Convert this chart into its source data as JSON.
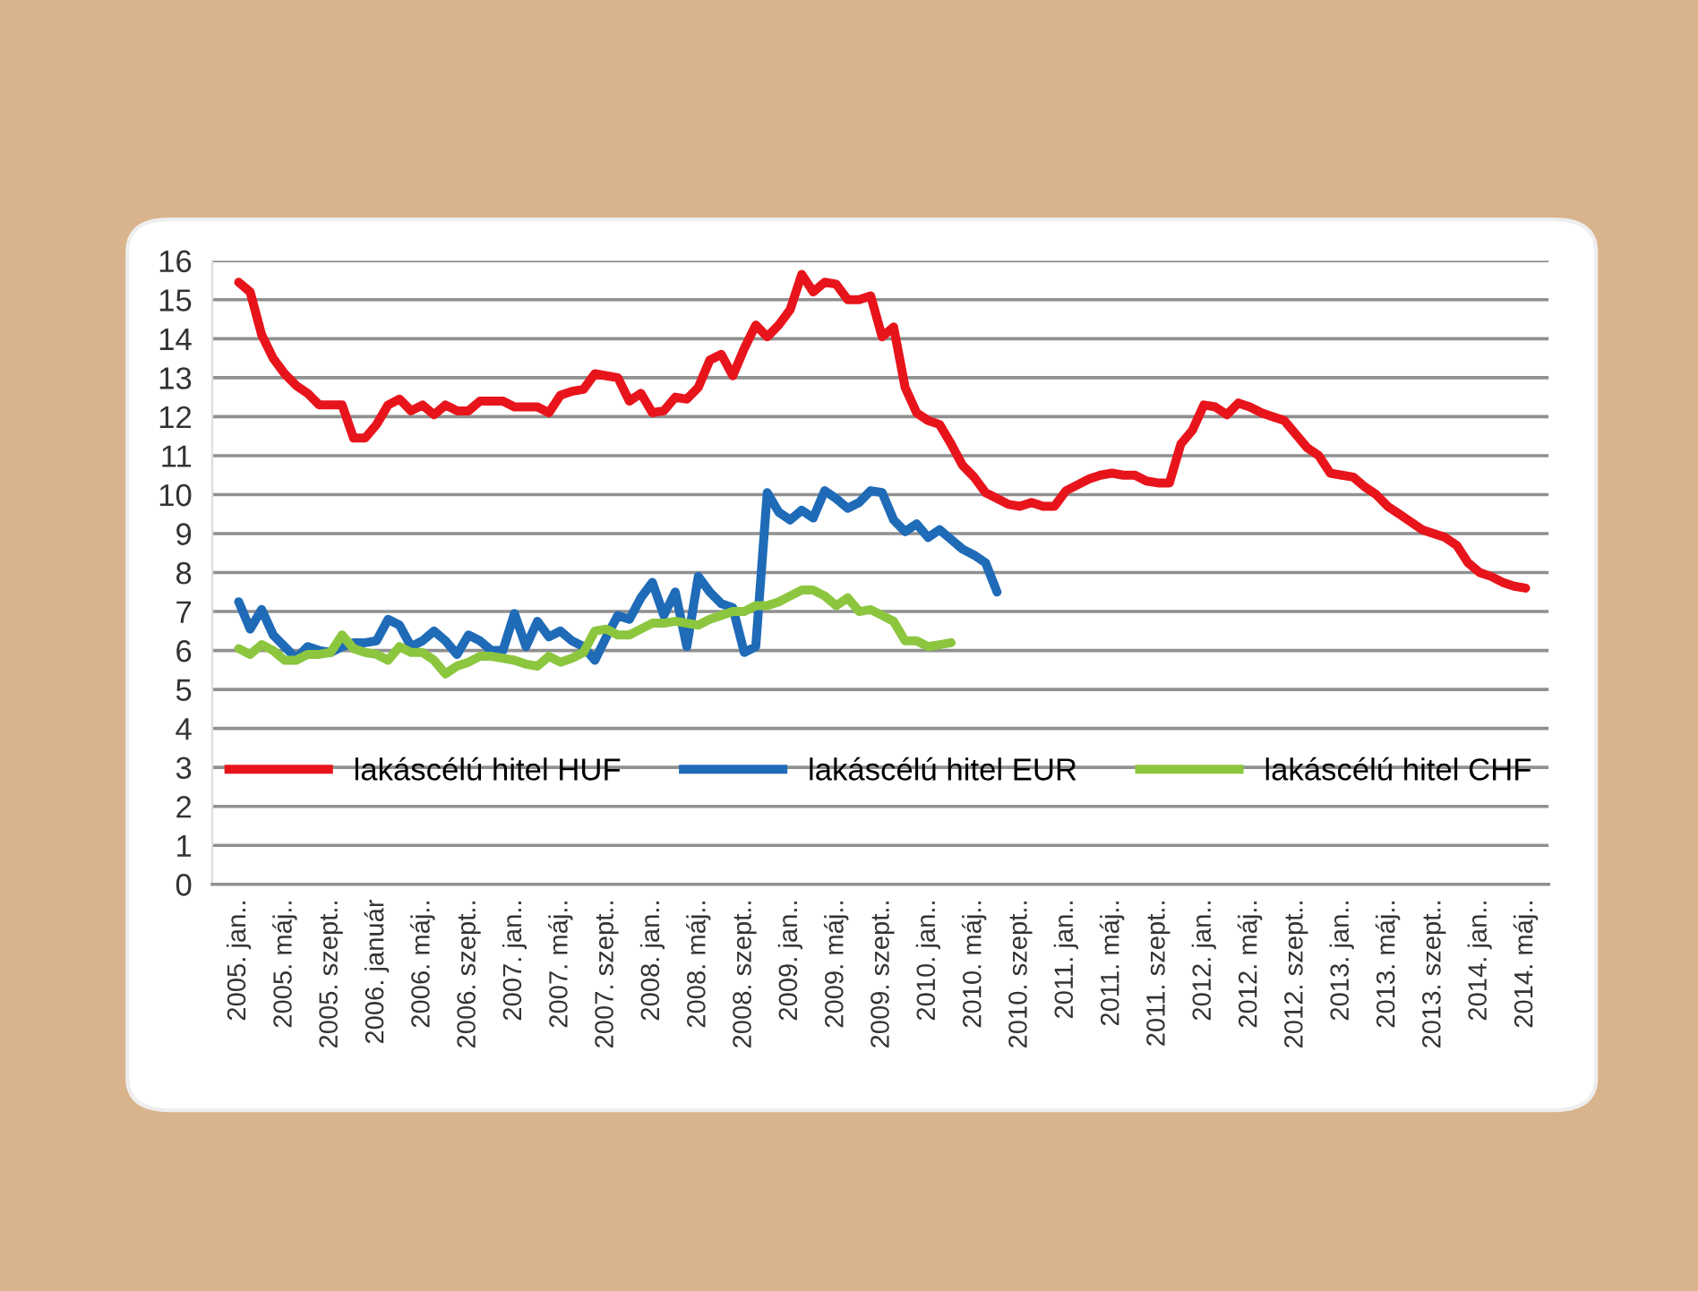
{
  "chart_data": {
    "type": "line",
    "categories": [
      "2005. jan..",
      null,
      null,
      null,
      "2005. máj..",
      null,
      null,
      null,
      "2005. szept..",
      null,
      null,
      null,
      "2006. január",
      null,
      null,
      null,
      "2006. máj..",
      null,
      null,
      null,
      "2006. szept..",
      null,
      null,
      null,
      "2007. jan..",
      null,
      null,
      null,
      "2007. máj..",
      null,
      null,
      null,
      "2007. szept..",
      null,
      null,
      null,
      "2008. jan..",
      null,
      null,
      null,
      "2008. máj..",
      null,
      null,
      null,
      "2008. szept..",
      null,
      null,
      null,
      "2009. jan..",
      null,
      null,
      null,
      "2009. máj..",
      null,
      null,
      null,
      "2009. szept..",
      null,
      null,
      null,
      "2010. jan..",
      null,
      null,
      null,
      "2010. máj..",
      null,
      null,
      null,
      "2010. szept..",
      null,
      null,
      null,
      "2011. jan..",
      null,
      null,
      null,
      "2011. máj..",
      null,
      null,
      null,
      "2011. szept..",
      null,
      null,
      null,
      "2012. jan..",
      null,
      null,
      null,
      "2012. máj..",
      null,
      null,
      null,
      "2012. szept..",
      null,
      null,
      null,
      "2013. jan..",
      null,
      null,
      null,
      "2013. máj..",
      null,
      null,
      null,
      "2013. szept..",
      null,
      null,
      null,
      "2014. jan..",
      null,
      null,
      null,
      "2014. máj.."
    ],
    "series": [
      {
        "name": "lakáscélú hitel HUF",
        "color": "#e8141b",
        "values": [
          15.45,
          15.2,
          14.1,
          13.5,
          13.1,
          12.8,
          12.6,
          12.3,
          12.3,
          12.3,
          11.45,
          11.45,
          11.8,
          12.3,
          12.45,
          12.15,
          12.3,
          12.05,
          12.3,
          12.15,
          12.15,
          12.4,
          12.4,
          12.4,
          12.25,
          12.25,
          12.25,
          12.1,
          12.55,
          12.65,
          12.7,
          13.1,
          13.05,
          13.0,
          12.4,
          12.6,
          12.1,
          12.15,
          12.5,
          12.45,
          12.75,
          13.45,
          13.6,
          13.05,
          13.75,
          14.35,
          14.05,
          14.35,
          14.75,
          15.65,
          15.2,
          15.45,
          15.4,
          15.0,
          15.0,
          15.1,
          14.05,
          14.3,
          12.75,
          12.1,
          11.9,
          11.8,
          11.3,
          10.75,
          10.45,
          10.05,
          9.9,
          9.75,
          9.7,
          9.8,
          9.7,
          9.7,
          10.1,
          10.25,
          10.4,
          10.5,
          10.55,
          10.5,
          10.5,
          10.35,
          10.3,
          10.3,
          11.3,
          11.65,
          12.3,
          12.25,
          12.05,
          12.35,
          12.25,
          12.1,
          12.0,
          11.9,
          11.55,
          11.2,
          11.0,
          10.55,
          10.5,
          10.45,
          10.2,
          10.0,
          9.7,
          9.5,
          9.3,
          9.1,
          9.0,
          8.9,
          8.7,
          8.25,
          8.0,
          7.9,
          7.75,
          7.65,
          7.6
        ]
      },
      {
        "name": "lakáscélú hitel EUR",
        "color": "#1f6bb8",
        "values": [
          7.25,
          6.55,
          7.05,
          6.4,
          6.1,
          5.8,
          6.1,
          6.0,
          5.95,
          6.1,
          6.2,
          6.2,
          6.25,
          6.8,
          6.65,
          6.1,
          6.25,
          6.5,
          6.25,
          5.9,
          6.4,
          6.25,
          6.0,
          6.0,
          6.95,
          6.1,
          6.75,
          6.35,
          6.5,
          6.25,
          6.1,
          5.75,
          6.35,
          6.9,
          6.8,
          7.35,
          7.75,
          6.9,
          7.5,
          6.1,
          7.9,
          7.5,
          7.2,
          7.1,
          5.95,
          6.1,
          10.05,
          9.55,
          9.35,
          9.6,
          9.4,
          10.1,
          9.9,
          9.65,
          9.8,
          10.1,
          10.05,
          9.35,
          9.05,
          9.25,
          8.9,
          9.1,
          8.85,
          8.6,
          8.45,
          8.25,
          7.5,
          null,
          null,
          null,
          null,
          null,
          null,
          null,
          null,
          null,
          null,
          null,
          null,
          null,
          null,
          null,
          null,
          null,
          null,
          null,
          null,
          null,
          null,
          null,
          null,
          null,
          null,
          null,
          null,
          null,
          null,
          null,
          null,
          null,
          null,
          null,
          null,
          null,
          null,
          null,
          null,
          null,
          null,
          null,
          null,
          null,
          null
        ]
      },
      {
        "name": "lakáscélú hitel CHF",
        "color": "#8cc63f",
        "values": [
          6.05,
          5.9,
          6.15,
          6.0,
          5.75,
          5.75,
          5.9,
          5.9,
          5.95,
          6.4,
          6.05,
          5.95,
          5.9,
          5.75,
          6.1,
          5.95,
          5.95,
          5.75,
          5.4,
          5.6,
          5.7,
          5.85,
          5.85,
          5.8,
          5.75,
          5.65,
          5.6,
          5.85,
          5.7,
          5.8,
          5.95,
          6.5,
          6.55,
          6.4,
          6.4,
          6.55,
          6.7,
          6.7,
          6.75,
          6.7,
          6.65,
          6.8,
          6.9,
          7.0,
          7.0,
          7.15,
          7.15,
          7.25,
          7.4,
          7.55,
          7.55,
          7.4,
          7.15,
          7.35,
          7.0,
          7.05,
          6.9,
          6.75,
          6.25,
          6.25,
          6.1,
          6.15,
          6.2,
          null,
          null,
          null,
          null,
          null,
          null,
          null,
          null,
          null,
          null,
          null,
          null,
          null,
          null,
          null,
          null,
          null,
          null,
          null,
          null,
          null,
          null,
          null,
          null,
          null,
          null,
          null,
          null,
          null,
          null,
          null,
          null,
          null,
          null,
          null,
          null,
          null,
          null,
          null,
          null,
          null,
          null,
          null,
          null,
          null,
          null,
          null,
          null,
          null,
          null
        ]
      }
    ],
    "ylim": [
      0,
      16
    ],
    "yticks": [
      0,
      1,
      2,
      3,
      4,
      5,
      6,
      7,
      8,
      9,
      10,
      11,
      12,
      13,
      14,
      15,
      16
    ],
    "grid": "y",
    "legend": "bottom",
    "marker": "none",
    "line_style": "solid"
  }
}
